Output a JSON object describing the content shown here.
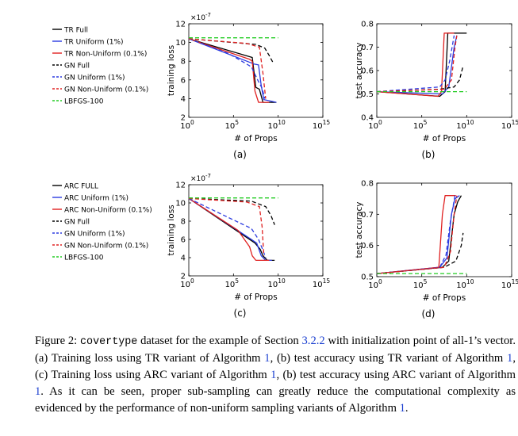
{
  "legends": [
    {
      "entries": [
        {
          "label": "TR Full",
          "color": "#000000",
          "dash": "solid"
        },
        {
          "label": "TR Uniform (1%)",
          "color": "#2b3ae0",
          "dash": "solid"
        },
        {
          "label": "TR Non-Uniform (0.1%)",
          "color": "#e02020",
          "dash": "solid"
        },
        {
          "label": "GN Full",
          "color": "#000000",
          "dash": "dashed"
        },
        {
          "label": "GN Uniform (1%)",
          "color": "#2b3ae0",
          "dash": "dashed"
        },
        {
          "label": "GN Non-Uniform (0.1%)",
          "color": "#e02020",
          "dash": "dashed"
        },
        {
          "label": "LBFGS-100",
          "color": "#22cc22",
          "dash": "dashed"
        }
      ]
    },
    {
      "entries": [
        {
          "label": "ARC FULL",
          "color": "#000000",
          "dash": "solid"
        },
        {
          "label": "ARC Uniform (1%)",
          "color": "#2b3ae0",
          "dash": "solid"
        },
        {
          "label": "ARC Non-Uniform (0.1%)",
          "color": "#e02020",
          "dash": "solid"
        },
        {
          "label": "GN Full",
          "color": "#000000",
          "dash": "dashed"
        },
        {
          "label": "GN Uniform (1%)",
          "color": "#2b3ae0",
          "dash": "dashed"
        },
        {
          "label": "GN Non-Uniform (0.1%)",
          "color": "#e02020",
          "dash": "dashed"
        },
        {
          "label": "LBFGS-100",
          "color": "#22cc22",
          "dash": "dashed"
        }
      ]
    }
  ],
  "chart_data": [
    {
      "id": "a",
      "type": "line",
      "panel_label": "(a)",
      "xlabel": "# of Props",
      "ylabel": "training loss",
      "x_scale": "log",
      "xlim_exp": [
        0,
        15
      ],
      "xticks_exp": [
        0,
        5,
        10,
        15
      ],
      "ylim": [
        2,
        12
      ],
      "yticks": [
        2,
        4,
        6,
        8,
        10,
        12
      ],
      "y_multiplier": "×10",
      "y_multiplier_exp": "-7",
      "series": [
        {
          "color": "#000000",
          "dash": "solid",
          "points": [
            [
              0,
              10.4
            ],
            [
              7.1,
              8.4
            ],
            [
              7.5,
              5.2
            ],
            [
              7.9,
              5.0
            ],
            [
              8.3,
              3.6
            ],
            [
              9.8,
              3.6
            ]
          ]
        },
        {
          "color": "#2b3ae0",
          "dash": "solid",
          "points": [
            [
              0,
              10.4
            ],
            [
              7.3,
              7.7
            ],
            [
              7.8,
              7.6
            ],
            [
              8.1,
              5.4
            ],
            [
              8.4,
              3.9
            ],
            [
              9.8,
              3.6
            ]
          ]
        },
        {
          "color": "#e02020",
          "dash": "solid",
          "points": [
            [
              0,
              10.4
            ],
            [
              6.8,
              8.2
            ],
            [
              7.1,
              8.0
            ],
            [
              7.4,
              4.8
            ],
            [
              7.8,
              3.6
            ],
            [
              9.0,
              3.6
            ]
          ]
        },
        {
          "color": "#000000",
          "dash": "dashed",
          "points": [
            [
              0,
              10.4
            ],
            [
              7.5,
              9.8
            ],
            [
              8.5,
              9.4
            ],
            [
              9.0,
              8.6
            ],
            [
              9.4,
              7.9
            ]
          ]
        },
        {
          "color": "#2b3ae0",
          "dash": "dashed",
          "points": [
            [
              0,
              10.4
            ],
            [
              4.5,
              8.8
            ],
            [
              7.0,
              7.4
            ],
            [
              7.7,
              6.0
            ],
            [
              8.2,
              5.1
            ],
            [
              8.5,
              4.0
            ]
          ]
        },
        {
          "color": "#e02020",
          "dash": "dashed",
          "points": [
            [
              0,
              10.4
            ],
            [
              6.5,
              9.9
            ],
            [
              7.9,
              9.5
            ],
            [
              8.3,
              6.7
            ],
            [
              8.6,
              4.0
            ]
          ]
        },
        {
          "color": "#22cc22",
          "dash": "dashed",
          "points": [
            [
              0,
              10.5
            ],
            [
              10,
              10.5
            ]
          ]
        }
      ]
    },
    {
      "id": "b",
      "type": "line",
      "panel_label": "(b)",
      "xlabel": "# of Props",
      "ylabel": "test accuracy",
      "x_scale": "log",
      "xlim_exp": [
        0,
        15
      ],
      "xticks_exp": [
        0,
        5,
        10,
        15
      ],
      "ylim": [
        0.4,
        0.8
      ],
      "yticks": [
        0.4,
        0.5,
        0.6,
        0.7,
        0.8
      ],
      "series": [
        {
          "color": "#000000",
          "dash": "solid",
          "points": [
            [
              0,
              0.51
            ],
            [
              7.0,
              0.49
            ],
            [
              7.6,
              0.51
            ],
            [
              7.9,
              0.76
            ],
            [
              10.0,
              0.76
            ]
          ]
        },
        {
          "color": "#2b3ae0",
          "dash": "solid",
          "points": [
            [
              0,
              0.51
            ],
            [
              7.3,
              0.5
            ],
            [
              8.0,
              0.53
            ],
            [
              8.6,
              0.7
            ],
            [
              8.9,
              0.75
            ]
          ]
        },
        {
          "color": "#e02020",
          "dash": "solid",
          "points": [
            [
              0,
              0.51
            ],
            [
              6.8,
              0.49
            ],
            [
              7.2,
              0.51
            ],
            [
              7.5,
              0.76
            ],
            [
              8.6,
              0.76
            ]
          ]
        },
        {
          "color": "#000000",
          "dash": "dashed",
          "points": [
            [
              0,
              0.51
            ],
            [
              7.0,
              0.52
            ],
            [
              8.6,
              0.53
            ],
            [
              9.2,
              0.56
            ],
            [
              9.6,
              0.62
            ]
          ]
        },
        {
          "color": "#2b3ae0",
          "dash": "dashed",
          "points": [
            [
              0,
              0.51
            ],
            [
              7.0,
              0.53
            ],
            [
              7.6,
              0.56
            ],
            [
              8.1,
              0.64
            ],
            [
              8.6,
              0.75
            ]
          ]
        },
        {
          "color": "#e02020",
          "dash": "dashed",
          "points": [
            [
              0,
              0.51
            ],
            [
              7.5,
              0.52
            ],
            [
              8.3,
              0.56
            ],
            [
              8.7,
              0.7
            ],
            [
              8.9,
              0.75
            ]
          ]
        },
        {
          "color": "#22cc22",
          "dash": "dashed",
          "points": [
            [
              0,
              0.51
            ],
            [
              10,
              0.51
            ]
          ]
        }
      ]
    },
    {
      "id": "c",
      "type": "line",
      "panel_label": "(c)",
      "xlabel": "# of Props",
      "ylabel": "training loss",
      "x_scale": "log",
      "xlim_exp": [
        0,
        15
      ],
      "xticks_exp": [
        0,
        5,
        10,
        15
      ],
      "ylim": [
        2,
        12
      ],
      "yticks": [
        2,
        4,
        6,
        8,
        10,
        12
      ],
      "y_multiplier": "×10",
      "y_multiplier_exp": "-7",
      "series": [
        {
          "color": "#000000",
          "dash": "solid",
          "points": [
            [
              0,
              10.5
            ],
            [
              7.4,
              5.6
            ],
            [
              8.0,
              4.9
            ],
            [
              8.3,
              4.2
            ],
            [
              8.8,
              3.7
            ],
            [
              9.6,
              3.7
            ]
          ]
        },
        {
          "color": "#2b3ae0",
          "dash": "solid",
          "points": [
            [
              0,
              10.5
            ],
            [
              7.0,
              6.0
            ],
            [
              7.6,
              5.6
            ],
            [
              8.1,
              4.2
            ],
            [
              8.6,
              3.7
            ],
            [
              9.3,
              3.7
            ]
          ]
        },
        {
          "color": "#e02020",
          "dash": "solid",
          "points": [
            [
              0,
              10.5
            ],
            [
              5.5,
              7.0
            ],
            [
              6.8,
              5.2
            ],
            [
              7.1,
              4.2
            ],
            [
              7.5,
              3.7
            ],
            [
              9.0,
              3.7
            ]
          ]
        },
        {
          "color": "#000000",
          "dash": "dashed",
          "points": [
            [
              0,
              10.5
            ],
            [
              7.0,
              10.2
            ],
            [
              8.6,
              9.6
            ],
            [
              9.2,
              8.6
            ],
            [
              9.6,
              7.6
            ]
          ]
        },
        {
          "color": "#2b3ae0",
          "dash": "dashed",
          "points": [
            [
              0,
              10.5
            ],
            [
              4.0,
              8.6
            ],
            [
              7.0,
              7.2
            ],
            [
              7.8,
              6.0
            ],
            [
              8.3,
              4.8
            ],
            [
              8.6,
              4.0
            ]
          ]
        },
        {
          "color": "#e02020",
          "dash": "dashed",
          "points": [
            [
              0,
              10.5
            ],
            [
              6.5,
              10.1
            ],
            [
              7.9,
              9.6
            ],
            [
              8.2,
              7.4
            ],
            [
              8.4,
              4.2
            ]
          ]
        },
        {
          "color": "#22cc22",
          "dash": "dashed",
          "points": [
            [
              0,
              10.55
            ],
            [
              10,
              10.55
            ]
          ]
        }
      ]
    },
    {
      "id": "d",
      "type": "line",
      "panel_label": "(d)",
      "xlabel": "# of Props",
      "ylabel": "test accuracy",
      "x_scale": "log",
      "xlim_exp": [
        0,
        15
      ],
      "xticks_exp": [
        0,
        5,
        10,
        15
      ],
      "ylim": [
        0.5,
        0.8
      ],
      "yticks": [
        0.5,
        0.6,
        0.7,
        0.8
      ],
      "series": [
        {
          "color": "#000000",
          "dash": "solid",
          "points": [
            [
              0,
              0.51
            ],
            [
              7.3,
              0.53
            ],
            [
              8.0,
              0.55
            ],
            [
              8.6,
              0.7
            ],
            [
              9.0,
              0.74
            ],
            [
              9.4,
              0.76
            ]
          ]
        },
        {
          "color": "#2b3ae0",
          "dash": "solid",
          "points": [
            [
              0,
              0.51
            ],
            [
              7.0,
              0.53
            ],
            [
              7.8,
              0.56
            ],
            [
              8.3,
              0.7
            ],
            [
              8.7,
              0.75
            ],
            [
              9.2,
              0.76
            ]
          ]
        },
        {
          "color": "#e02020",
          "dash": "solid",
          "points": [
            [
              0,
              0.51
            ],
            [
              6.9,
              0.53
            ],
            [
              7.3,
              0.7
            ],
            [
              7.6,
              0.76
            ],
            [
              8.8,
              0.76
            ]
          ]
        },
        {
          "color": "#000000",
          "dash": "dashed",
          "points": [
            [
              0,
              0.51
            ],
            [
              7.5,
              0.53
            ],
            [
              8.8,
              0.55
            ],
            [
              9.4,
              0.6
            ],
            [
              9.6,
              0.64
            ]
          ]
        },
        {
          "color": "#2b3ae0",
          "dash": "dashed",
          "points": [
            [
              0,
              0.51
            ],
            [
              7.0,
              0.53
            ],
            [
              7.7,
              0.57
            ],
            [
              8.2,
              0.68
            ],
            [
              8.7,
              0.76
            ]
          ]
        },
        {
          "color": "#e02020",
          "dash": "dashed",
          "points": [
            [
              0,
              0.51
            ],
            [
              7.5,
              0.53
            ],
            [
              8.2,
              0.58
            ],
            [
              8.6,
              0.7
            ],
            [
              8.9,
              0.76
            ]
          ]
        },
        {
          "color": "#22cc22",
          "dash": "dashed",
          "points": [
            [
              0,
              0.51
            ],
            [
              10,
              0.51
            ]
          ]
        }
      ]
    }
  ],
  "caption": {
    "figure_label": "Figure 2:",
    "dataset": "covertype",
    "text_1": " dataset for the example of Section ",
    "ref_section": "3.2.2",
    "text_2": " with initialization point of all-1’s vector. (a) Training loss using TR variant of Algorithm ",
    "ref_alg_1": "1",
    "text_3": ", (b) test accuracy using TR variant of Algorithm ",
    "ref_alg_2": "1",
    "text_4": ", (c) Training loss using ARC variant of Algorithm ",
    "ref_alg_3": "1",
    "text_5": ", (b) test accuracy using ARC variant of Algorithm ",
    "ref_alg_4": "1",
    "text_6": ". As it can be seen, proper sub-sampling can greatly reduce the computational complexity as evidenced by the performance of non-uniform sampling variants of Algorithm ",
    "ref_alg_5": "1",
    "text_7": "."
  }
}
